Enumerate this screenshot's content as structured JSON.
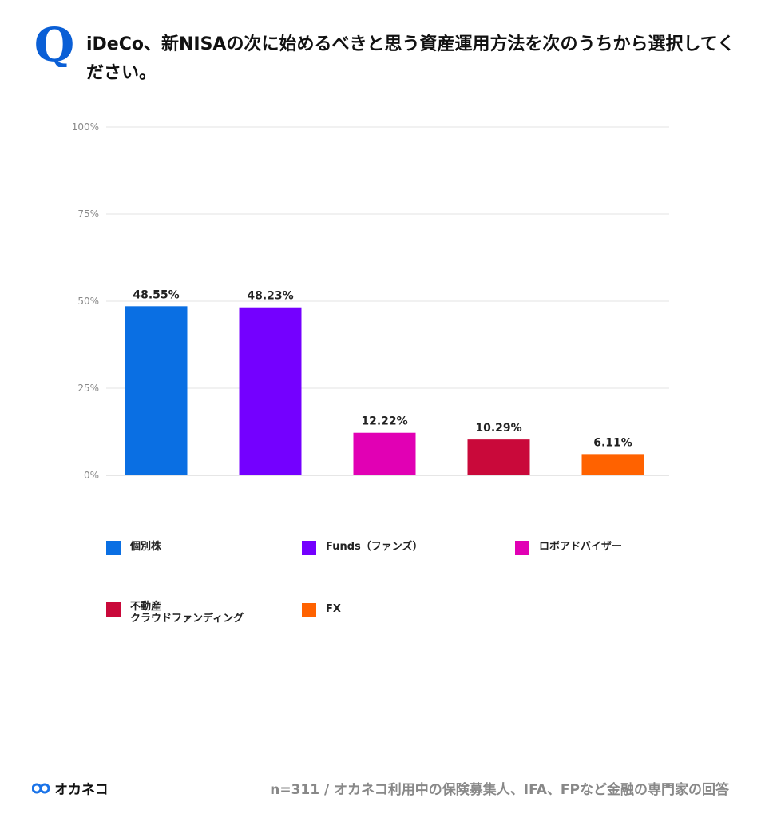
{
  "header": {
    "q_icon": "Q",
    "title": "iDeCo、新NISAの次に始めるべきと思う資産運用方法を次のうちから選択してください。"
  },
  "chart_data": {
    "type": "bar",
    "categories": [
      "個別株",
      "Funds（ファンズ）",
      "ロボアドバイザー",
      "不動産\nクラウドファンディング",
      "FX"
    ],
    "values": [
      48.55,
      48.23,
      12.22,
      10.29,
      6.11
    ],
    "data_labels": [
      "48.55%",
      "48.23%",
      "12.22%",
      "10.29%",
      "6.11%"
    ],
    "colors": [
      "#0a6fe3",
      "#7400ff",
      "#e100b4",
      "#c9093a",
      "#ff6200"
    ],
    "yticks": [
      "0%",
      "25%",
      "50%",
      "75%",
      "100%"
    ],
    "ylim": [
      0,
      100
    ],
    "grid": true,
    "legend_position": "bottom",
    "title": "",
    "xlabel": "",
    "ylabel": ""
  },
  "legend": [
    {
      "label": "個別株"
    },
    {
      "label": "Funds（ファンズ）"
    },
    {
      "label": "ロボアドバイザー"
    },
    {
      "label_line1": "不動産",
      "label_line2": "クラウドファンディング"
    },
    {
      "label": "FX"
    }
  ],
  "footer": {
    "logo_text": "オカネコ",
    "note": "n=311 / オカネコ利用中の保険募集人、IFA、FPなど金融の専門家の回答"
  }
}
